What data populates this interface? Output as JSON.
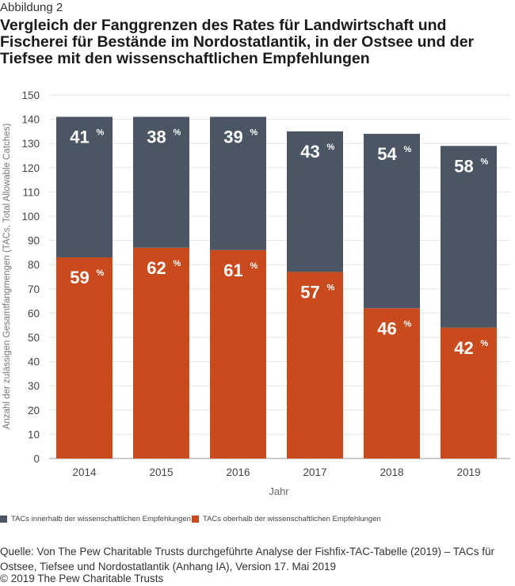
{
  "header": {
    "kicker": "Abbildung 2",
    "title": "Vergleich der Fanggrenzen des Rates für Landwirtschaft und Fischerei für Bestände im Nordostatlantik, in der Ostsee und der Tiefsee mit den wissenschaftlichen Empfehlungen"
  },
  "chart_data": {
    "type": "bar",
    "stacked": true,
    "categories": [
      "2014",
      "2015",
      "2016",
      "2017",
      "2018",
      "2019"
    ],
    "series": [
      {
        "name": "TACs oberhalb der wissenschaftlichen Empfehlungen",
        "color": "#c94a1c",
        "values": [
          83,
          87,
          86,
          77,
          62,
          54
        ],
        "labels": [
          "59",
          "62",
          "61",
          "57",
          "46",
          "42"
        ]
      },
      {
        "name": "TACs innerhalb der wissenschaftlichen Empfehlungen",
        "color": "#4b5563",
        "values": [
          58,
          54,
          55,
          58,
          72,
          75
        ],
        "labels": [
          "41",
          "38",
          "39",
          "43",
          "54",
          "58"
        ]
      }
    ],
    "percent_symbol": "%",
    "xlabel": "Jahr",
    "ylabel": "Anzahl der zulässigen Gesamtfangmengen (TACs, Total Allowable Catches)",
    "ylim": [
      0,
      150
    ],
    "yticks": [
      0,
      10,
      20,
      30,
      40,
      50,
      60,
      70,
      80,
      90,
      100,
      110,
      120,
      130,
      140,
      150
    ],
    "grid": true
  },
  "legend": {
    "inside_label": "TACs innerhalb der wissenschaftlichen Empfehlungen",
    "inside_color": "#4b5563",
    "above_label": "TACs oberhalb der wissenschaftlichen Empfehlungen",
    "above_color": "#c94a1c"
  },
  "footer": {
    "source": "Quelle: Von The Pew Charitable Trusts durchgeführte Analyse der Fishfix-TAC-Tabelle (2019) – TACs für Ostsee, Tiefsee und Nordostatlantik (Anhang IA), Version 17. Mai 2019",
    "copyright": "© 2019 The Pew Charitable Trusts"
  }
}
